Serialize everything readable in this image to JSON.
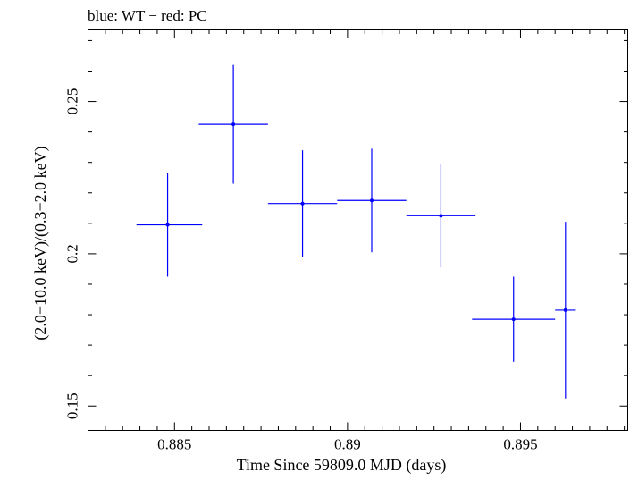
{
  "chart_data": {
    "type": "scatter",
    "title": "blue: WT − red: PC",
    "xlabel": "Time Since 59809.0 MJD (days)",
    "ylabel": "(2.0−10.0 keV)/(0.3−2.0 keV)",
    "xlim": [
      0.8825,
      0.8981
    ],
    "ylim": [
      0.142,
      0.2735
    ],
    "x_ticks": [
      0.885,
      0.89,
      0.895
    ],
    "x_tick_labels": [
      "0.885",
      "0.89",
      "0.895"
    ],
    "y_ticks": [
      0.15,
      0.2,
      0.25
    ],
    "y_tick_labels": [
      "0.15",
      "0.2",
      "0.25"
    ],
    "x_minor_step": 0.0005,
    "y_minor_step": 0.01,
    "grid": false,
    "series": [
      {
        "color": "#0000ff",
        "points": [
          {
            "x": 0.8848,
            "y": 0.2095,
            "xerr_low": 0.0009,
            "xerr_high": 0.001,
            "yerr": 0.017
          },
          {
            "x": 0.8867,
            "y": 0.2425,
            "xerr_low": 0.001,
            "xerr_high": 0.001,
            "yerr": 0.0195
          },
          {
            "x": 0.8887,
            "y": 0.2165,
            "xerr_low": 0.001,
            "xerr_high": 0.001,
            "yerr": 0.0175
          },
          {
            "x": 0.8907,
            "y": 0.2175,
            "xerr_low": 0.001,
            "xerr_high": 0.001,
            "yerr": 0.017
          },
          {
            "x": 0.8927,
            "y": 0.2125,
            "xerr_low": 0.001,
            "xerr_high": 0.001,
            "yerr": 0.017
          },
          {
            "x": 0.8948,
            "y": 0.1785,
            "xerr_low": 0.0012,
            "xerr_high": 0.0012,
            "yerr": 0.014
          },
          {
            "x": 0.8963,
            "y": 0.1815,
            "xerr_low": 0.0003,
            "xerr_high": 0.0003,
            "yerr": 0.029
          }
        ]
      }
    ]
  }
}
